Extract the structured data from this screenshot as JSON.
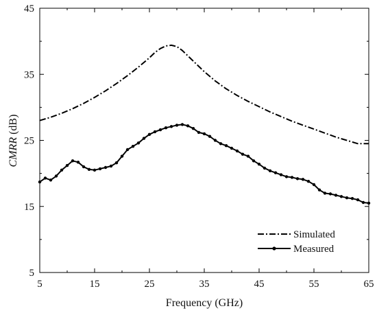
{
  "chart_data": {
    "type": "line",
    "xlabel": "Frequency (GHz)",
    "ylabel": {
      "italic": "CMRR",
      "rest": " (dB)"
    },
    "xlim": [
      5,
      65
    ],
    "ylim": [
      5,
      45
    ],
    "xticks": [
      "5",
      "15",
      "25",
      "35",
      "45",
      "55",
      "65"
    ],
    "yticks": [
      "5",
      "15",
      "25",
      "35",
      "45"
    ],
    "grid": false,
    "legend_position": "bottom-right",
    "series": [
      {
        "name": "Simulated",
        "style": "dash-dot",
        "color": "#000000",
        "x": [
          5,
          7,
          9,
          11,
          13,
          15,
          17,
          19,
          21,
          23,
          25,
          26,
          27,
          28,
          29,
          30,
          31,
          33,
          35,
          37,
          39,
          41,
          43,
          45,
          47,
          49,
          51,
          53,
          55,
          57,
          59,
          61,
          63,
          65
        ],
        "y": [
          28.0,
          28.5,
          29.1,
          29.8,
          30.6,
          31.5,
          32.5,
          33.6,
          34.8,
          36.1,
          37.5,
          38.3,
          38.9,
          39.3,
          39.4,
          39.2,
          38.6,
          37.0,
          35.4,
          34.0,
          32.8,
          31.8,
          30.9,
          30.1,
          29.3,
          28.6,
          27.9,
          27.3,
          26.7,
          26.1,
          25.5,
          25.0,
          24.5,
          24.5
        ]
      },
      {
        "name": "Measured",
        "style": "solid-dots",
        "color": "#000000",
        "x": [
          5,
          6,
          7,
          8,
          9,
          10,
          11,
          12,
          13,
          14,
          15,
          16,
          17,
          18,
          19,
          20,
          21,
          22,
          23,
          24,
          25,
          26,
          27,
          28,
          29,
          30,
          31,
          32,
          33,
          34,
          35,
          36,
          37,
          38,
          39,
          40,
          41,
          42,
          43,
          44,
          45,
          46,
          47,
          48,
          49,
          50,
          51,
          52,
          53,
          54,
          55,
          56,
          57,
          58,
          59,
          60,
          61,
          62,
          63,
          64,
          65
        ],
        "y": [
          18.7,
          19.3,
          19.0,
          19.6,
          20.5,
          21.2,
          21.9,
          21.7,
          21.0,
          20.6,
          20.5,
          20.7,
          20.9,
          21.1,
          21.6,
          22.6,
          23.6,
          24.1,
          24.6,
          25.3,
          25.9,
          26.3,
          26.6,
          26.9,
          27.1,
          27.3,
          27.4,
          27.2,
          26.8,
          26.2,
          26.0,
          25.6,
          25.0,
          24.5,
          24.2,
          23.8,
          23.4,
          22.9,
          22.6,
          21.9,
          21.4,
          20.8,
          20.4,
          20.1,
          19.8,
          19.5,
          19.4,
          19.2,
          19.1,
          18.8,
          18.3,
          17.5,
          17.0,
          16.9,
          16.7,
          16.5,
          16.3,
          16.2,
          16.0,
          15.6,
          15.5
        ]
      }
    ]
  }
}
